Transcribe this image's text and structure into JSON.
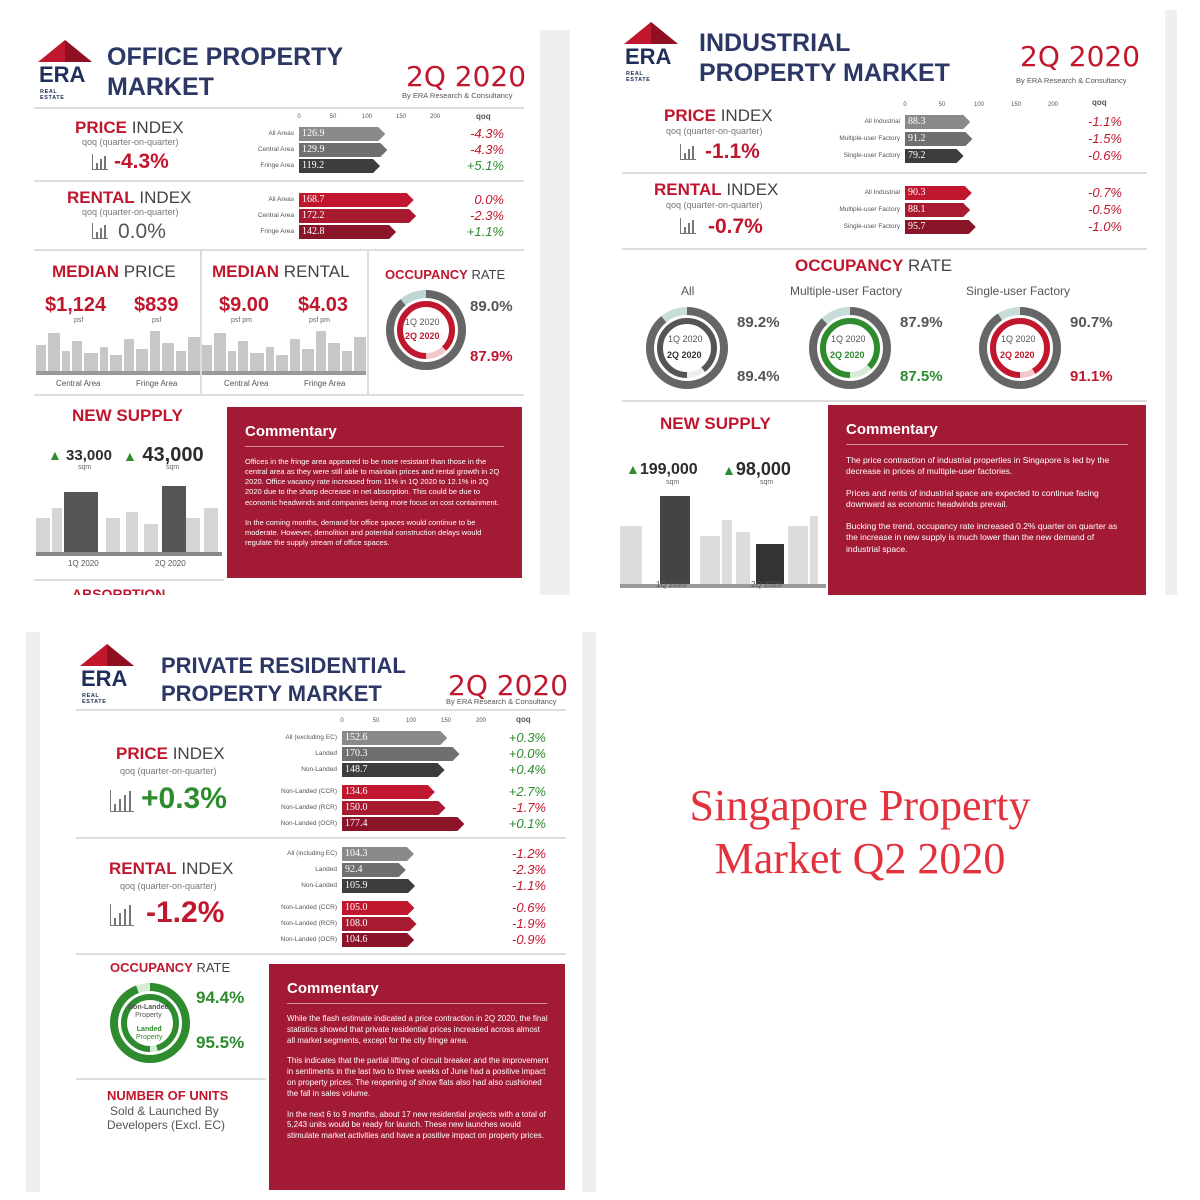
{
  "brand": {
    "name": "ERA",
    "sub": "REAL ESTATE"
  },
  "colors": {
    "red": "#c0172e",
    "navy": "#2c3766",
    "green": "#2e8b2e",
    "commentary": "#a31a35"
  },
  "office": {
    "title1": "OFFICE PROPERTY",
    "title2": "MARKET",
    "quarter": "2Q 2020",
    "by": "By ERA Research & Consultancy",
    "axis": [
      "0",
      "50",
      "100",
      "150",
      "200"
    ],
    "qoq_head": "qoq",
    "price": {
      "label_bold": "PRICE",
      "label_rest": " INDEX",
      "sub": "qoq (quarter-on-quarter)",
      "value": "-4.3%",
      "rows": [
        {
          "label": "All Areas",
          "value": "126.9",
          "chg": "-4.3%",
          "dir": "r"
        },
        {
          "label": "Central Area",
          "value": "129.9",
          "chg": "-4.3%",
          "dir": "r"
        },
        {
          "label": "Fringe Area",
          "value": "119.2",
          "chg": "+5.1%",
          "dir": "g"
        }
      ]
    },
    "rental": {
      "label_bold": "RENTAL",
      "label_rest": " INDEX",
      "sub": "qoq (quarter-on-quarter)",
      "value": "0.0%",
      "rows": [
        {
          "label": "All Areas",
          "value": "168.7",
          "chg": "0.0%",
          "dir": "r"
        },
        {
          "label": "Central Area",
          "value": "172.2",
          "chg": "-2.3%",
          "dir": "r"
        },
        {
          "label": "Fringe Area",
          "value": "142.8",
          "chg": "+1.1%",
          "dir": "g"
        }
      ]
    },
    "median_price": {
      "label_bold": "MEDIAN",
      "label_rest": " PRICE",
      "central": "$1,124",
      "fringe": "$839",
      "unit": "psf",
      "central_label": "Central Area",
      "fringe_label": "Fringe Area"
    },
    "median_rental": {
      "label_bold": "MEDIAN",
      "label_rest": " RENTAL",
      "central": "$9.00",
      "fringe": "$4.03",
      "unit": "psf pm",
      "central_label": "Central Area",
      "fringe_label": "Fringe Area"
    },
    "occupancy": {
      "label_bold": "OCCUPANCY",
      "label_rest": " RATE",
      "q1": "1Q 2020",
      "q2": "2Q 2020",
      "v1": "89.0%",
      "v2": "87.9%"
    },
    "supply": {
      "label": "NEW SUPPLY",
      "v1": "33,000",
      "v2": "43,000",
      "unit": "sqm",
      "q1": "1Q 2020",
      "q2": "2Q 2020"
    },
    "commentary": {
      "title": "Commentary",
      "p1": "Offices in the fringe area appeared to be more resistant than those in the central area as they were still able to maintain prices and rental growth in 2Q 2020. Office vacancy rate increased from 11% in 1Q 2020 to 12.1% in 2Q 2020 due to the sharp decrease in net absorption. This could be due to economic headwinds and companies being more focus on cost containment.",
      "p2": "In the coming months, demand for office spaces would continue to be moderate. However, demolition and potential construction delays would regulate the supply stream of office spaces."
    },
    "absorption": "ABSORPTION"
  },
  "industrial": {
    "title1": "INDUSTRIAL",
    "title2": "PROPERTY MARKET",
    "quarter": "2Q 2020",
    "by": "By ERA Research & Consultancy",
    "axis": [
      "0",
      "50",
      "100",
      "150",
      "200"
    ],
    "qoq_head": "qoq",
    "price": {
      "label_bold": "PRICE",
      "label_rest": " INDEX",
      "sub": "qoq (quarter-on-quarter)",
      "value": "-1.1%",
      "rows": [
        {
          "label": "All Industrial",
          "value": "88.3",
          "chg": "-1.1%",
          "dir": "r"
        },
        {
          "label": "Multiple-user Factory",
          "value": "91.2",
          "chg": "-1.5%",
          "dir": "r"
        },
        {
          "label": "Single-user Factory",
          "value": "79.2",
          "chg": "-0.6%",
          "dir": "r"
        }
      ]
    },
    "rental": {
      "label_bold": "RENTAL",
      "label_rest": " INDEX",
      "sub": "qoq (quarter-on-quarter)",
      "value": "-0.7%",
      "rows": [
        {
          "label": "All Industrial",
          "value": "90.3",
          "chg": "-0.7%",
          "dir": "r"
        },
        {
          "label": "Multiple-user Factory",
          "value": "88.1",
          "chg": "-0.5%",
          "dir": "r"
        },
        {
          "label": "Single-user Factory",
          "value": "95.7",
          "chg": "-1.0%",
          "dir": "r"
        }
      ]
    },
    "occupancy": {
      "label_bold": "OCCUPANCY",
      "label_rest": " RATE",
      "q1": "1Q 2020",
      "q2": "2Q 2020",
      "groups": [
        {
          "name": "All",
          "v1": "89.2%",
          "v2": "89.4%"
        },
        {
          "name": "Multiple-user Factory",
          "v1": "87.9%",
          "v2": "87.5%"
        },
        {
          "name": "Single-user Factory",
          "v1": "90.7%",
          "v2": "91.1%"
        }
      ]
    },
    "supply": {
      "label": "NEW SUPPLY",
      "v1": "199,000",
      "v2": "98,000",
      "unit": "sqm",
      "q1": "1Q 2020",
      "q2": "2Q 2020"
    },
    "commentary": {
      "title": "Commentary",
      "p1": "The price contraction of industrial properties in Singapore is led by the decrease in prices of multiple-user factories.",
      "p2": "Prices and rents of industrial space are expected to continue facing downward as economic headwinds prevail.",
      "p3": "Bucking the trend, occupancy rate increased 0.2% quarter on quarter as the increase in new supply is much lower than the new demand of industrial space."
    }
  },
  "residential": {
    "title1": "PRIVATE RESIDENTIAL",
    "title2": "PROPERTY MARKET",
    "quarter": "2Q 2020",
    "by": "By ERA Research & Consultancy",
    "axis": [
      "0",
      "50",
      "100",
      "150",
      "200"
    ],
    "qoq_head": "qoq",
    "price": {
      "label_bold": "PRICE",
      "label_rest": " INDEX",
      "sub": "qoq (quarter-on-quarter)",
      "value": "+0.3%",
      "rows": [
        {
          "label": "All (excluding EC)",
          "value": "152.6",
          "chg": "+0.3%",
          "dir": "g"
        },
        {
          "label": "Landed",
          "value": "170.3",
          "chg": "+0.0%",
          "dir": "g"
        },
        {
          "label": "Non-Landed",
          "value": "148.7",
          "chg": "+0.4%",
          "dir": "g"
        },
        {
          "label": "Non-Landed (CCR)",
          "value": "134.6",
          "chg": "+2.7%",
          "dir": "g"
        },
        {
          "label": "Non-Landed (RCR)",
          "value": "150.0",
          "chg": "-1.7%",
          "dir": "r"
        },
        {
          "label": "Non-Landed (OCR)",
          "value": "177.4",
          "chg": "+0.1%",
          "dir": "g"
        }
      ]
    },
    "rental": {
      "label_bold": "RENTAL",
      "label_rest": " INDEX",
      "sub": "qoq (quarter-on-quarter)",
      "value": "-1.2%",
      "rows": [
        {
          "label": "All (including EC)",
          "value": "104.3",
          "chg": "-1.2%",
          "dir": "r"
        },
        {
          "label": "Landed",
          "value": "92.4",
          "chg": "-2.3%",
          "dir": "r"
        },
        {
          "label": "Non-Landed",
          "value": "105.9",
          "chg": "-1.1%",
          "dir": "r"
        },
        {
          "label": "Non-Landed (CCR)",
          "value": "105.0",
          "chg": "-0.6%",
          "dir": "r"
        },
        {
          "label": "Non-Landed (RCR)",
          "value": "108.0",
          "chg": "-1.9%",
          "dir": "r"
        },
        {
          "label": "Non-Landed (OCR)",
          "value": "104.6",
          "chg": "-0.9%",
          "dir": "r"
        }
      ]
    },
    "occupancy": {
      "label_bold": "OCCUPANCY",
      "label_rest": " RATE",
      "inner1": "Non-Landed",
      "inner1b": "Property",
      "inner2": "Landed",
      "inner2b": "Property",
      "v1": "94.4%",
      "v2": "95.5%"
    },
    "units": {
      "label": "NUMBER OF UNITS",
      "sub1": "Sold & Launched By",
      "sub2": "Developers (Excl. EC)"
    },
    "commentary": {
      "title": "Commentary",
      "p1": "While the flash estimate indicated a price contraction in 2Q 2020, the final statistics showed that private residential prices increased across almost all market segments, except for the city fringe area.",
      "p2": "This indicates that the partial lifting of circuit breaker and the improvement in sentiments in the last two to three weeks of June had a positive impact on property prices. The reopening of show flats also had also cushioned the fall in sales volume.",
      "p3": "In the next 6 to 9 months, about 17 new residential projects with a total of 5,243 units would be ready for launch. These new launches would stimulate market activities and have a positive impact on property prices."
    }
  },
  "caption": {
    "line1": "Singapore Property",
    "line2": "Market Q2 2020"
  }
}
